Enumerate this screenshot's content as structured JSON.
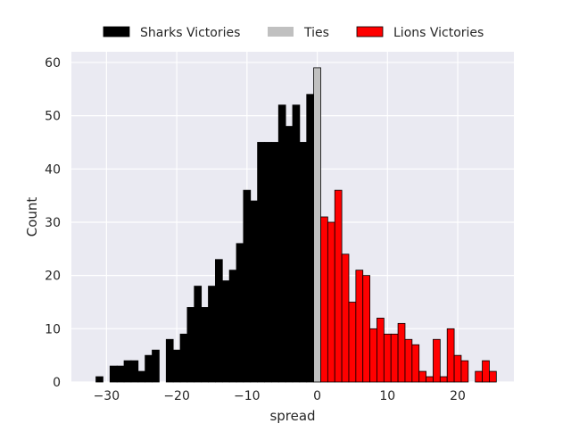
{
  "chart_data": {
    "type": "bar",
    "xlabel": "spread",
    "ylabel": "Count",
    "xlim": [
      -35,
      28
    ],
    "ylim": [
      0,
      62
    ],
    "xticks": [
      -30,
      -20,
      -10,
      0,
      10,
      20
    ],
    "yticks": [
      0,
      10,
      20,
      30,
      40,
      50,
      60
    ],
    "grid": true,
    "legend_position": "top",
    "bar_width": 1,
    "series": [
      {
        "name": "Sharks Victories",
        "color": "#000000",
        "x": [
          -31,
          -29,
          -28,
          -27,
          -26,
          -25,
          -24,
          -23,
          -21,
          -20,
          -19,
          -18,
          -17,
          -16,
          -15,
          -14,
          -13,
          -12,
          -11,
          -10,
          -9,
          -8,
          -7,
          -6,
          -5,
          -4,
          -3,
          -2,
          -1
        ],
        "values": [
          1,
          3,
          3,
          4,
          4,
          2,
          5,
          6,
          8,
          6,
          9,
          14,
          18,
          14,
          18,
          23,
          19,
          21,
          26,
          36,
          34,
          45,
          45,
          45,
          52,
          48,
          52,
          45,
          54
        ]
      },
      {
        "name": "Ties",
        "color": "#c0c0c0",
        "x": [
          0
        ],
        "values": [
          59
        ]
      },
      {
        "name": "Lions Victories",
        "color": "#ff0000",
        "x": [
          1,
          2,
          3,
          4,
          5,
          6,
          7,
          8,
          9,
          10,
          11,
          12,
          13,
          14,
          15,
          16,
          17,
          18,
          19,
          20,
          21,
          23,
          24,
          25
        ],
        "values": [
          31,
          30,
          36,
          24,
          15,
          21,
          20,
          10,
          12,
          9,
          9,
          11,
          8,
          7,
          2,
          1,
          8,
          1,
          10,
          5,
          4,
          2,
          4,
          2
        ]
      }
    ]
  }
}
